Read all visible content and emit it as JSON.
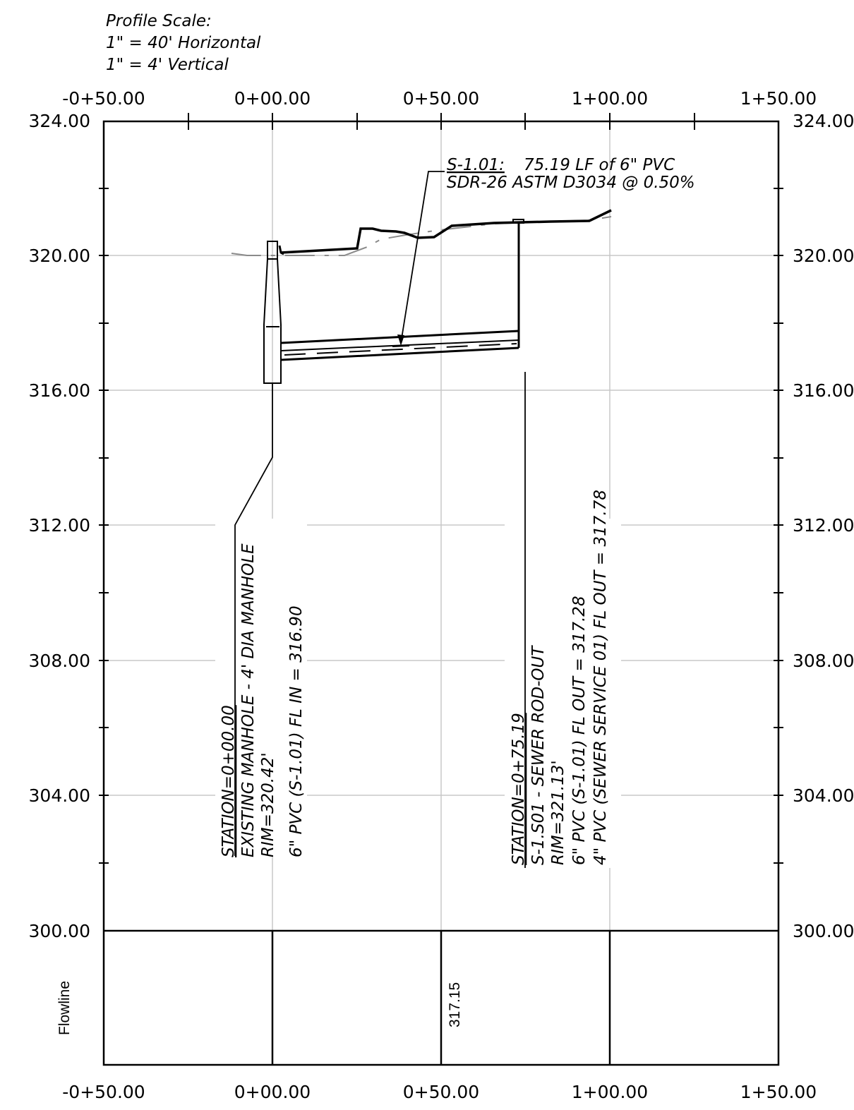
{
  "scale_note": {
    "title": "Profile Scale:",
    "horizontal": "1\" = 40' Horizontal",
    "vertical": "1\" = 4' Vertical"
  },
  "stations": [
    "-0+50.00",
    "0+00.00",
    "0+50.00",
    "1+00.00",
    "1+50.00"
  ],
  "elevations": [
    "324.00",
    "320.00",
    "316.00",
    "312.00",
    "308.00",
    "304.00",
    "300.00"
  ],
  "right_elevations": [
    "324.00",
    "320.00",
    "316.00",
    "312.00",
    "308.00",
    "304.00",
    "300.00"
  ],
  "pipe_callout": {
    "id": "S-1.01:",
    "line1": "75.19 LF of 6\" PVC",
    "line2": "SDR-26 ASTM D3034 @ 0.50%"
  },
  "manhole_label": {
    "station": "STATION=0+00.00",
    "name": "EXISTING MANHOLE - 4' DIA MANHOLE",
    "rim": "RIM=320.42'",
    "inverts": [
      "6\" PVC (S-1.01) FL IN = 316.90"
    ]
  },
  "rodout_label": {
    "station": "STATION=0+75.19",
    "name": "S-1.S01 - SEWER ROD-OUT",
    "rim": "RIM=321.13'",
    "inverts": [
      "6\" PVC (S-1.01) FL OUT = 317.28",
      "4\" PVC (SEWER SERVICE 01) FL OUT = 317.78"
    ]
  },
  "flowline": {
    "label": "Flowline",
    "value": "317.15"
  },
  "chart_data": {
    "type": "profile",
    "x_range": [
      -50,
      150
    ],
    "y_range": [
      300,
      324
    ],
    "grid": true,
    "existing_ground": [
      [
        10,
        320.5
      ],
      [
        10,
        320.1
      ],
      [
        40,
        320.0
      ],
      [
        52,
        320.3
      ],
      [
        56,
        320.5
      ],
      [
        68,
        320.6
      ],
      [
        75.19,
        321.1
      ],
      [
        100,
        320.9
      ]
    ],
    "proposed_surface": [
      [
        2.5,
        320.05
      ],
      [
        24,
        320.25
      ],
      [
        26,
        320.8
      ],
      [
        32,
        320.75
      ],
      [
        39,
        320.6
      ],
      [
        43,
        320.6
      ],
      [
        49,
        320.8
      ],
      [
        76,
        320.95
      ],
      [
        94,
        321.0
      ],
      [
        100,
        321.3
      ]
    ],
    "pipe": {
      "start_station": 0,
      "end_station": 75.19,
      "invert_in": 316.9,
      "invert_out": 317.28,
      "slope_pct": 0.5
    },
    "manhole": {
      "station": 0,
      "rim": 320.42,
      "bottom": 316.2
    },
    "rodout": {
      "station": 75.19,
      "rim": 321.13
    }
  }
}
